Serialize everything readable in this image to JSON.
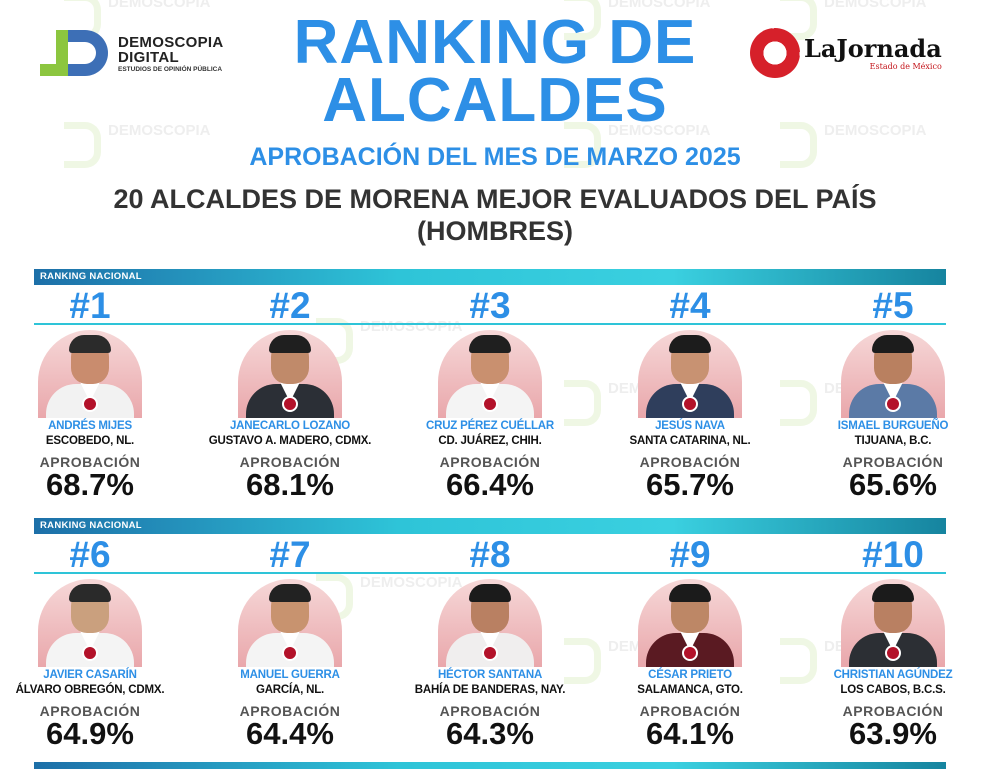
{
  "header": {
    "title_line1": "RANKING DE",
    "title_line2": "ALCALDES",
    "subtitle": "APROBACIÓN DEL MES DE MARZO 2025",
    "heading_line1": "20 ALCALDES DE MORENA MEJOR EVALUADOS DEL PAÍS",
    "heading_line2": "(HOMBRES)"
  },
  "logos": {
    "left_line1": "DEMOSCOPIA",
    "left_line2": "DIGITAL",
    "left_tagline": "ESTUDIOS DE OPINIÓN PÚBLICA",
    "right_name": "LaJornada",
    "right_sub": "Estado de México"
  },
  "watermark": {
    "line1": "DEMOSCOPIA",
    "line2": "DIGITAL",
    "tagline": "ESTUDIOS DE OPINIÓN PÚBLICA"
  },
  "band_label": "RANKING NACIONAL",
  "approval_label": "APROBACIÓN",
  "colors": {
    "accent": "#2d8fe6",
    "band": "#2ec4d8",
    "party_pin": "#b3122a"
  },
  "mayors": [
    {
      "rank": "#1",
      "name": "ANDRÉS MIJES",
      "municipality": "ESCOBEDO, NL.",
      "approval": "68.7%"
    },
    {
      "rank": "#2",
      "name": "JANECARLO LOZANO",
      "municipality": "GUSTAVO A. MADERO, CDMX.",
      "approval": "68.1%"
    },
    {
      "rank": "#3",
      "name": "CRUZ PÉREZ CUÉLLAR",
      "municipality": "CD. JUÁREZ, CHIH.",
      "approval": "66.4%"
    },
    {
      "rank": "#4",
      "name": "JESÚS NAVA",
      "municipality": "SANTA CATARINA, NL.",
      "approval": "65.7%"
    },
    {
      "rank": "#5",
      "name": "ISMAEL BURGUEÑO",
      "municipality": "TIJUANA, B.C.",
      "approval": "65.6%"
    },
    {
      "rank": "#6",
      "name": "JAVIER CASARÍN",
      "municipality": "ÁLVARO OBREGÓN, CDMX.",
      "approval": "64.9%"
    },
    {
      "rank": "#7",
      "name": "MANUEL GUERRA",
      "municipality": "GARCÍA, NL.",
      "approval": "64.4%"
    },
    {
      "rank": "#8",
      "name": "HÉCTOR SANTANA",
      "municipality": "BAHÍA DE BANDERAS, NAY.",
      "approval": "64.3%"
    },
    {
      "rank": "#9",
      "name": "CÉSAR PRIETO",
      "municipality": "SALAMANCA, GTO.",
      "approval": "64.1%"
    },
    {
      "rank": "#10",
      "name": "CHRISTIAN AGÚNDEZ",
      "municipality": "LOS CABOS, B.C.S.",
      "approval": "63.9%"
    }
  ]
}
